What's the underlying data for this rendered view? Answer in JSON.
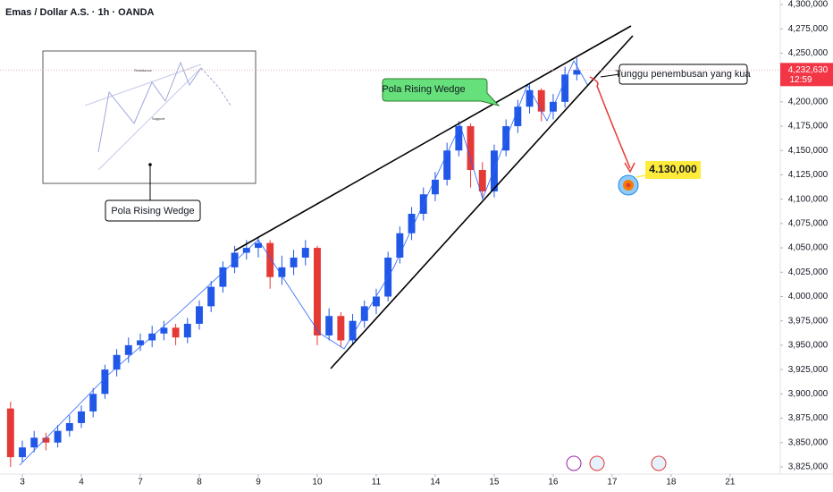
{
  "chart_data": {
    "type": "candlestick",
    "title": "Emas / Dollar A.S. · 1h · OANDA",
    "up_color": "#2157e6",
    "down_color": "#e53935",
    "xlim": [
      -0.379,
      12.85
    ],
    "xticks": [
      {
        "value": 0,
        "label": "3"
      },
      {
        "value": 1,
        "label": "4"
      },
      {
        "value": 2,
        "label": "7"
      },
      {
        "value": 3,
        "label": "8"
      },
      {
        "value": 4,
        "label": "9"
      },
      {
        "value": 5,
        "label": "10"
      },
      {
        "value": 6,
        "label": "11"
      },
      {
        "value": 7,
        "label": "14"
      },
      {
        "value": 8,
        "label": "15"
      },
      {
        "value": 9,
        "label": "16"
      },
      {
        "value": 10,
        "label": "17"
      },
      {
        "value": 11,
        "label": "18"
      },
      {
        "value": 12,
        "label": "21"
      }
    ],
    "ylim": [
      3817600,
      4304600
    ],
    "yticks": [
      {
        "value": 3825000,
        "label": "3,825,000"
      },
      {
        "value": 3850000,
        "label": "3,850,000"
      },
      {
        "value": 3875000,
        "label": "3,875,000"
      },
      {
        "value": 3900000,
        "label": "3,900,000"
      },
      {
        "value": 3925000,
        "label": "3,925,000"
      },
      {
        "value": 3950000,
        "label": "3,950,000"
      },
      {
        "value": 3975000,
        "label": "3,975,000"
      },
      {
        "value": 4000000,
        "label": "4,000,000"
      },
      {
        "value": 4025000,
        "label": "4,025,000"
      },
      {
        "value": 4050000,
        "label": "4,050,000"
      },
      {
        "value": 4075000,
        "label": "4,075,000"
      },
      {
        "value": 4100000,
        "label": "4,100,000"
      },
      {
        "value": 4125000,
        "label": "4,125,000"
      },
      {
        "value": 4150000,
        "label": "4,150,000"
      },
      {
        "value": 4175000,
        "label": "4,175,000"
      },
      {
        "value": 4200000,
        "label": "4,200,000"
      },
      {
        "value": 4225000,
        "label": "4,225,000"
      },
      {
        "value": 4250000,
        "label": "4,250,000"
      },
      {
        "value": 4275000,
        "label": "4,275,000"
      },
      {
        "value": 4300000,
        "label": "4,300,000"
      }
    ],
    "x": [
      -0.2,
      0.0,
      0.2,
      0.4,
      0.6,
      0.8,
      1.0,
      1.2,
      1.4,
      1.6,
      1.8,
      2.0,
      2.2,
      2.4,
      2.6,
      2.8,
      3.0,
      3.2,
      3.4,
      3.6,
      3.8,
      4.0,
      4.2,
      4.4,
      4.6,
      4.8,
      5.0,
      5.2,
      5.4,
      5.6,
      5.8,
      6.0,
      6.2,
      6.4,
      6.6,
      6.8,
      7.0,
      7.2,
      7.4,
      7.6,
      7.8,
      8.0,
      8.2,
      8.4,
      8.6,
      8.8,
      9.0,
      9.2,
      9.4
    ],
    "open": [
      3885000,
      3835000,
      3845000,
      3855000,
      3850000,
      3862000,
      3870000,
      3882000,
      3900000,
      3925000,
      3940000,
      3950000,
      3955000,
      3962000,
      3968000,
      3958000,
      3972000,
      3990000,
      4010000,
      4030000,
      4045000,
      4050000,
      4055000,
      4020000,
      4030000,
      4040000,
      4050000,
      3960000,
      3980000,
      3955000,
      3975000,
      3990000,
      4000000,
      4040000,
      4065000,
      4085000,
      4105000,
      4120000,
      4150000,
      4175000,
      4130000,
      4108000,
      4150000,
      4175000,
      4195000,
      4212000,
      4190000,
      4200000,
      4228000
    ],
    "high": [
      3892000,
      3852000,
      3862000,
      3860000,
      3868000,
      3878000,
      3888000,
      3906000,
      3930000,
      3946000,
      3958000,
      3962000,
      3970000,
      3975000,
      3972000,
      3978000,
      3996000,
      4016000,
      4036000,
      4052000,
      4058000,
      4060000,
      4058000,
      4042000,
      4048000,
      4058000,
      4052000,
      3988000,
      3984000,
      3982000,
      3996000,
      4008000,
      4046000,
      4072000,
      4092000,
      4112000,
      4128000,
      4158000,
      4180000,
      4178000,
      4138000,
      4156000,
      4182000,
      4202000,
      4218000,
      4214000,
      4208000,
      4236000,
      4245000
    ],
    "low": [
      3825000,
      3830000,
      3840000,
      3842000,
      3845000,
      3856000,
      3865000,
      3876000,
      3895000,
      3918000,
      3932000,
      3944000,
      3948000,
      3955000,
      3950000,
      3952000,
      3966000,
      3984000,
      4004000,
      4024000,
      4038000,
      4040000,
      4008000,
      4012000,
      4022000,
      4032000,
      3950000,
      3955000,
      3948000,
      3950000,
      3968000,
      3982000,
      3995000,
      4034000,
      4058000,
      4078000,
      4098000,
      4114000,
      4144000,
      4112000,
      4100000,
      4102000,
      4144000,
      4168000,
      4188000,
      4180000,
      4182000,
      4194000,
      4222000
    ],
    "close": [
      3835000,
      3845000,
      3855000,
      3850000,
      3862000,
      3870000,
      3882000,
      3900000,
      3925000,
      3940000,
      3950000,
      3955000,
      3962000,
      3968000,
      3958000,
      3972000,
      3990000,
      4010000,
      4030000,
      4045000,
      4050000,
      4055000,
      4020000,
      4030000,
      4040000,
      4050000,
      3960000,
      3980000,
      3955000,
      3975000,
      3990000,
      4000000,
      4040000,
      4065000,
      4085000,
      4105000,
      4120000,
      4150000,
      4175000,
      4130000,
      4108000,
      4150000,
      4175000,
      4195000,
      4212000,
      4190000,
      4200000,
      4228000,
      4233000
    ],
    "last_price": {
      "value": 4232630,
      "label": "4,232,630"
    },
    "countdown": "12:59",
    "annotations": {
      "wedge_label": "Pola Rising Wedge",
      "breakout_note": "Tunggu penembusan yang kua",
      "target": {
        "value": 4130000,
        "label": "4.130,000"
      },
      "inset_label": "Pola Rising Wedge",
      "inset_resistance": "Resistance",
      "inset_support": "Support"
    }
  }
}
